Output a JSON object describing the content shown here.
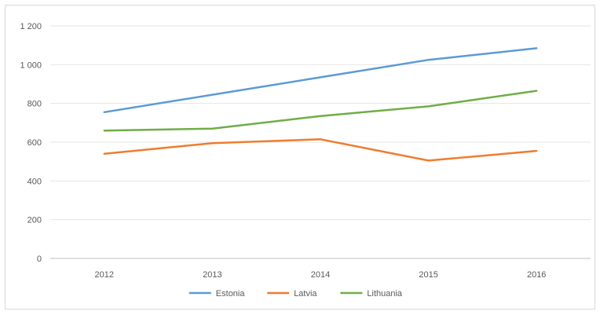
{
  "chart_data": {
    "type": "line",
    "x": [
      "2012",
      "2013",
      "2014",
      "2015",
      "2016"
    ],
    "ylim": [
      0,
      1200
    ],
    "yticks": [
      0,
      200,
      400,
      600,
      800,
      1000,
      1200
    ],
    "ytick_labels": [
      "0",
      "200",
      "400",
      "600",
      "800",
      "1 000",
      "1 200"
    ],
    "grid": true,
    "legend_position": "bottom",
    "series": [
      {
        "name": "Estonia",
        "color": "#5b9bd5",
        "values": [
          755,
          845,
          935,
          1025,
          1085
        ]
      },
      {
        "name": "Latvia",
        "color": "#ed7d31",
        "values": [
          540,
          595,
          615,
          505,
          555
        ]
      },
      {
        "name": "Lithuania",
        "color": "#70ad47",
        "values": [
          660,
          670,
          735,
          785,
          865
        ]
      }
    ]
  }
}
